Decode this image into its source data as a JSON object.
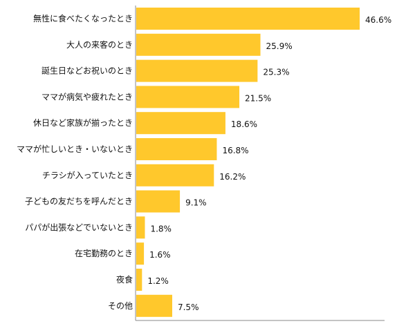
{
  "chart_data": {
    "type": "bar",
    "orientation": "horizontal",
    "categories": [
      "無性に食べたくなったとき",
      "大人の来客のとき",
      "誕生日などお祝いのとき",
      "ママが病気や疲れたとき",
      "休日など家族が揃ったとき",
      "ママが忙しいとき・いないとき",
      "チラシが入っていたとき",
      "子どもの友だちを呼んだとき",
      "パパが出張などでいないとき",
      "在宅勤務のとき",
      "夜食",
      "その他"
    ],
    "values": [
      46.6,
      25.9,
      25.3,
      21.5,
      18.6,
      16.8,
      16.2,
      9.1,
      1.8,
      1.6,
      1.2,
      7.5
    ],
    "value_labels": [
      "46.6%",
      "25.9%",
      "25.3%",
      "21.5%",
      "18.6%",
      "16.8%",
      "16.2%",
      "9.1%",
      "1.8%",
      "1.6%",
      "1.2%",
      "7.5%"
    ],
    "xlim": [
      0,
      47
    ],
    "bar_color": "#FFC82C",
    "axis_color": "#888888",
    "grid": false,
    "legend": "none"
  }
}
